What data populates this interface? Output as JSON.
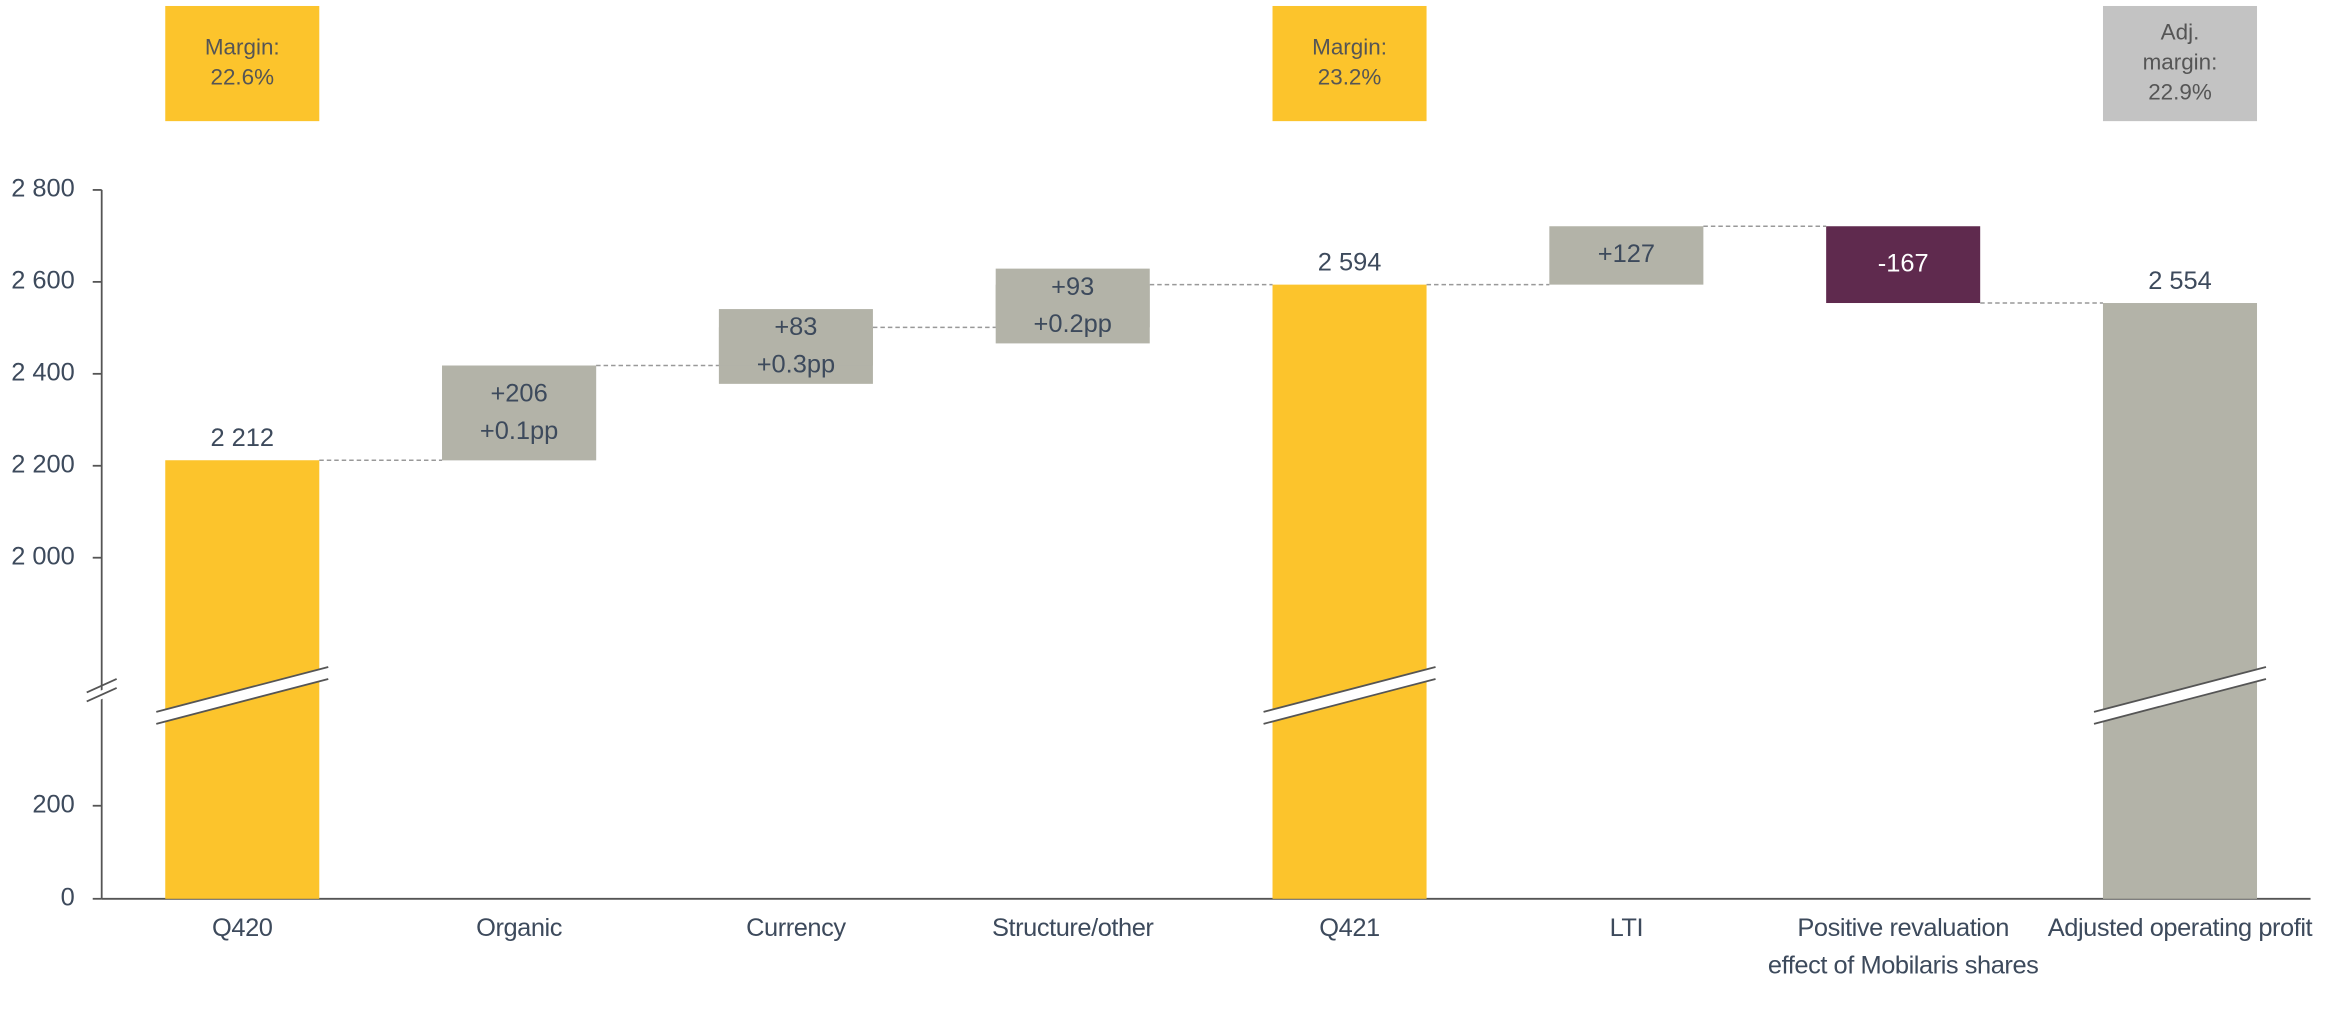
{
  "chart_data": {
    "type": "waterfall",
    "categories": [
      "Q420",
      "Organic",
      "Currency",
      "Structure/other",
      "Q421",
      "LTI",
      "Positive revaluation effect of Mobilaris shares",
      "Adjusted operating profit"
    ],
    "values": [
      2212,
      206,
      83,
      93,
      2594,
      127,
      -167,
      2554
    ],
    "value_labels": [
      "2 212",
      "+206",
      "+83",
      "+93",
      "2 594",
      "+127",
      "-167",
      "2 554"
    ],
    "is_total": [
      true,
      false,
      false,
      false,
      true,
      false,
      false,
      true
    ],
    "colors": [
      "#fcc42c",
      "#b3b3a8",
      "#b3b3a8",
      "#b3b3a8",
      "#fcc42c",
      "#b3b3a8",
      "#5f2a4e",
      "#b3b3a8"
    ],
    "margin_change_labels": [
      null,
      "+0.1pp",
      "+0.3pp",
      "+0.2pp",
      null,
      null,
      null,
      null
    ],
    "margin_labels": [
      [
        "Margin:",
        "22.6%"
      ],
      null,
      null,
      null,
      [
        "Margin:",
        "23.2%"
      ],
      null,
      null,
      [
        "Adj.",
        "margin:",
        "22.9%"
      ]
    ],
    "margin_colors": [
      "#fcc42c",
      null,
      null,
      null,
      "#fcc42c",
      null,
      null,
      "#c3c3c3"
    ],
    "ylim": [
      0,
      2800
    ],
    "axis_break": [
      450,
      1720
    ],
    "yticks": [
      0,
      200,
      {
        "value": 2000,
        "label": "2 000"
      },
      {
        "value": 2200,
        "label": "2 200"
      },
      {
        "value": 2400,
        "label": "2 400"
      },
      {
        "value": 2600,
        "label": "2 600"
      },
      {
        "value": 2800,
        "label": "2 800"
      }
    ]
  }
}
